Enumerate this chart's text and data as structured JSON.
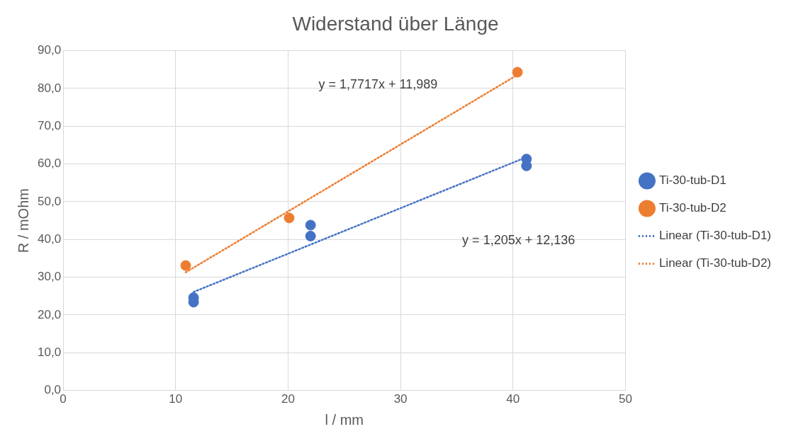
{
  "chart_data": {
    "type": "scatter",
    "title": "Widerstand über Länge",
    "xlabel": "l / mm",
    "ylabel": "R / mOhm",
    "series": [
      {
        "name": "Ti-30-tub-D1",
        "color": "#4472c4",
        "x": [
          11.6,
          11.6,
          22.0,
          22.0,
          41.2,
          41.2
        ],
        "values": [
          24.6,
          23.4,
          43.8,
          40.9,
          61.3,
          59.5
        ]
      },
      {
        "name": "Ti-30-tub-D2",
        "color": "#ed7d31",
        "x": [
          10.9,
          20.1,
          40.4
        ],
        "values": [
          33.1,
          45.7,
          84.3
        ]
      },
      {
        "name": "Linear (Ti-30-tub-D1)",
        "type": "line",
        "color": "#4472c4",
        "line_style": "dotted",
        "marker": "none",
        "x": [
          11.6,
          41.2
        ],
        "values": [
          26.1,
          61.8
        ]
      },
      {
        "name": "Linear (Ti-30-tub-D2)",
        "type": "line",
        "color": "#ed7d31",
        "line_style": "dotted",
        "marker": "none",
        "x": [
          10.9,
          40.4
        ],
        "values": [
          31.3,
          83.6
        ]
      }
    ],
    "annotations": [
      "y = 1,7717x + 11,989",
      "y = 1,205x + 12,136"
    ],
    "marker": "circle",
    "legend": "right",
    "grid": true,
    "xlim": [
      0,
      50
    ],
    "xticks": [
      0,
      10,
      20,
      30,
      40,
      50
    ],
    "ylim": [
      0,
      90
    ],
    "yticks": [
      {
        "value": 0,
        "label": "0,0"
      },
      {
        "value": 10,
        "label": "10,0"
      },
      {
        "value": 20,
        "label": "20,0"
      },
      {
        "value": 30,
        "label": "30,0"
      },
      {
        "value": 40,
        "label": "40,0"
      },
      {
        "value": 50,
        "label": "50,0"
      },
      {
        "value": 60,
        "label": "60,0"
      },
      {
        "value": 70,
        "label": "70,0"
      },
      {
        "value": 80,
        "label": "80,0"
      },
      {
        "value": 90,
        "label": "90,0"
      }
    ]
  }
}
